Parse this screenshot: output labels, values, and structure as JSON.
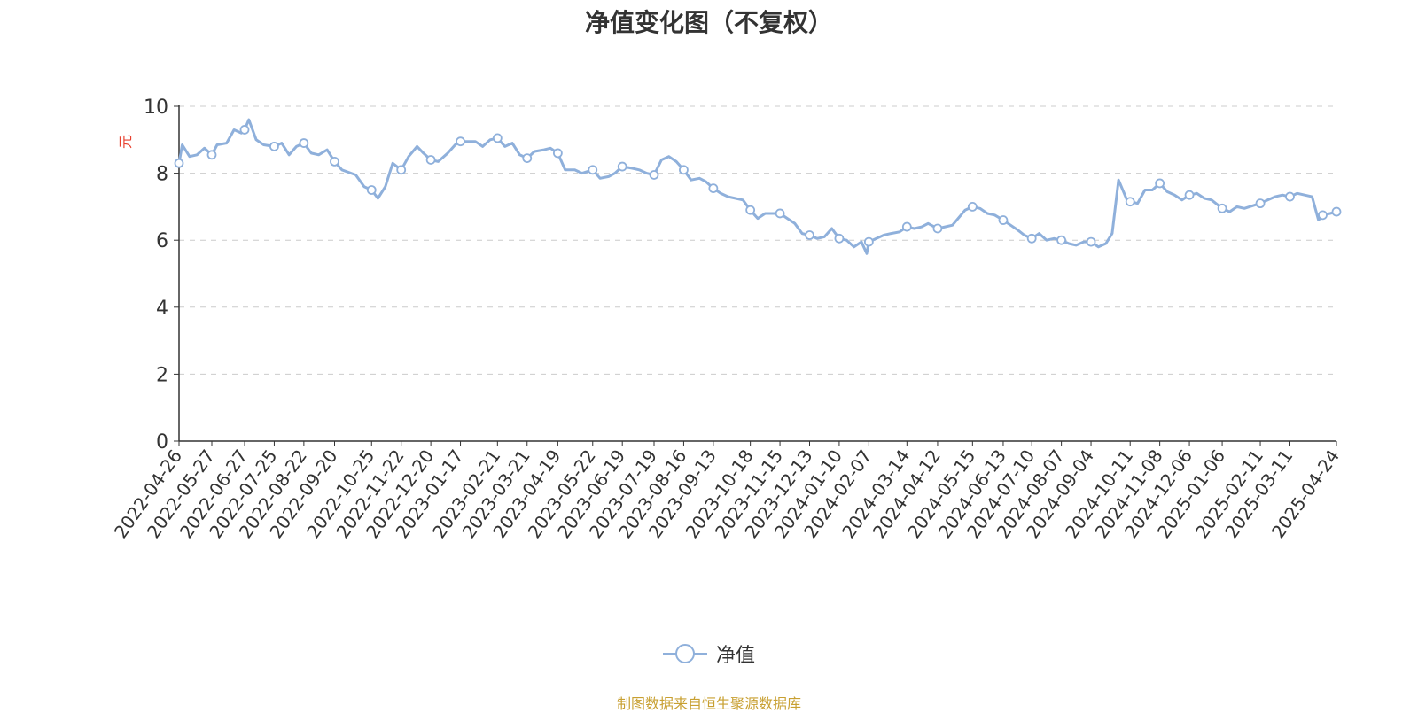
{
  "chart_data": {
    "type": "line",
    "title": "净值变化图（不复权）",
    "ylabel": "元",
    "ylim": [
      0,
      10
    ],
    "yticks": [
      0,
      2,
      4,
      6,
      8,
      10
    ],
    "grid": true,
    "legend_position": "bottom",
    "xlim": [
      "2022-04-26",
      "2025-04-24"
    ],
    "x_tick_labels": [
      "2022-04-26",
      "2022-05-27",
      "2022-06-27",
      "2022-07-25",
      "2022-08-22",
      "2022-09-20",
      "2022-10-25",
      "2022-11-22",
      "2022-12-20",
      "2023-01-17",
      "2023-02-21",
      "2023-03-21",
      "2023-04-19",
      "2023-05-22",
      "2023-06-19",
      "2023-07-19",
      "2023-08-16",
      "2023-09-13",
      "2023-10-18",
      "2023-11-15",
      "2023-12-13",
      "2024-01-10",
      "2024-02-07",
      "2024-03-14",
      "2024-04-12",
      "2024-05-15",
      "2024-06-13",
      "2024-07-10",
      "2024-08-07",
      "2024-09-04",
      "2024-10-11",
      "2024-11-08",
      "2024-12-06",
      "2025-01-06",
      "2025-02-11",
      "2025-03-11",
      "2025-04-24"
    ],
    "series": [
      {
        "name": "净值",
        "color": "#8fb0db",
        "points": [
          [
            "2022-04-26",
            8.3
          ],
          [
            "2022-04-29",
            8.85
          ],
          [
            "2022-05-06",
            8.5
          ],
          [
            "2022-05-13",
            8.55
          ],
          [
            "2022-05-20",
            8.75
          ],
          [
            "2022-05-27",
            8.55
          ],
          [
            "2022-06-01",
            8.85
          ],
          [
            "2022-06-10",
            8.9
          ],
          [
            "2022-06-17",
            9.3
          ],
          [
            "2022-06-24",
            9.2
          ],
          [
            "2022-06-27",
            9.3
          ],
          [
            "2022-07-01",
            9.6
          ],
          [
            "2022-07-08",
            9.0
          ],
          [
            "2022-07-15",
            8.85
          ],
          [
            "2022-07-25",
            8.8
          ],
          [
            "2022-08-01",
            8.9
          ],
          [
            "2022-08-08",
            8.55
          ],
          [
            "2022-08-15",
            8.8
          ],
          [
            "2022-08-22",
            8.9
          ],
          [
            "2022-08-29",
            8.6
          ],
          [
            "2022-09-05",
            8.55
          ],
          [
            "2022-09-13",
            8.7
          ],
          [
            "2022-09-20",
            8.35
          ],
          [
            "2022-09-27",
            8.1
          ],
          [
            "2022-10-10",
            7.95
          ],
          [
            "2022-10-18",
            7.6
          ],
          [
            "2022-10-25",
            7.5
          ],
          [
            "2022-10-31",
            7.25
          ],
          [
            "2022-11-07",
            7.6
          ],
          [
            "2022-11-14",
            8.3
          ],
          [
            "2022-11-22",
            8.1
          ],
          [
            "2022-11-29",
            8.5
          ],
          [
            "2022-12-07",
            8.8
          ],
          [
            "2022-12-13",
            8.6
          ],
          [
            "2022-12-20",
            8.4
          ],
          [
            "2022-12-27",
            8.35
          ],
          [
            "2023-01-05",
            8.6
          ],
          [
            "2023-01-12",
            8.85
          ],
          [
            "2023-01-17",
            8.95
          ],
          [
            "2023-01-31",
            8.95
          ],
          [
            "2023-02-07",
            8.8
          ],
          [
            "2023-02-14",
            9.0
          ],
          [
            "2023-02-21",
            9.05
          ],
          [
            "2023-02-28",
            8.8
          ],
          [
            "2023-03-07",
            8.9
          ],
          [
            "2023-03-14",
            8.55
          ],
          [
            "2023-03-21",
            8.45
          ],
          [
            "2023-03-28",
            8.65
          ],
          [
            "2023-04-06",
            8.7
          ],
          [
            "2023-04-12",
            8.75
          ],
          [
            "2023-04-19",
            8.6
          ],
          [
            "2023-04-26",
            8.1
          ],
          [
            "2023-05-05",
            8.1
          ],
          [
            "2023-05-12",
            8.0
          ],
          [
            "2023-05-22",
            8.1
          ],
          [
            "2023-05-29",
            7.85
          ],
          [
            "2023-06-06",
            7.9
          ],
          [
            "2023-06-12",
            8.0
          ],
          [
            "2023-06-19",
            8.2
          ],
          [
            "2023-06-28",
            8.15
          ],
          [
            "2023-07-05",
            8.1
          ],
          [
            "2023-07-12",
            8.0
          ],
          [
            "2023-07-19",
            7.95
          ],
          [
            "2023-07-26",
            8.4
          ],
          [
            "2023-08-02",
            8.5
          ],
          [
            "2023-08-09",
            8.35
          ],
          [
            "2023-08-16",
            8.1
          ],
          [
            "2023-08-23",
            7.8
          ],
          [
            "2023-08-31",
            7.85
          ],
          [
            "2023-09-06",
            7.75
          ],
          [
            "2023-09-13",
            7.55
          ],
          [
            "2023-09-20",
            7.4
          ],
          [
            "2023-09-27",
            7.3
          ],
          [
            "2023-10-11",
            7.2
          ],
          [
            "2023-10-18",
            6.9
          ],
          [
            "2023-10-25",
            6.65
          ],
          [
            "2023-11-01",
            6.8
          ],
          [
            "2023-11-08",
            6.8
          ],
          [
            "2023-11-15",
            6.8
          ],
          [
            "2023-11-22",
            6.65
          ],
          [
            "2023-11-29",
            6.5
          ],
          [
            "2023-12-06",
            6.2
          ],
          [
            "2023-12-13",
            6.15
          ],
          [
            "2023-12-20",
            6.05
          ],
          [
            "2023-12-27",
            6.1
          ],
          [
            "2024-01-03",
            6.35
          ],
          [
            "2024-01-10",
            6.05
          ],
          [
            "2024-01-17",
            6.0
          ],
          [
            "2024-01-24",
            5.8
          ],
          [
            "2024-01-31",
            5.95
          ],
          [
            "2024-02-05",
            5.6
          ],
          [
            "2024-02-07",
            5.95
          ],
          [
            "2024-02-21",
            6.15
          ],
          [
            "2024-02-28",
            6.2
          ],
          [
            "2024-03-07",
            6.25
          ],
          [
            "2024-03-14",
            6.4
          ],
          [
            "2024-03-21",
            6.35
          ],
          [
            "2024-03-28",
            6.4
          ],
          [
            "2024-04-03",
            6.5
          ],
          [
            "2024-04-12",
            6.35
          ],
          [
            "2024-04-19",
            6.4
          ],
          [
            "2024-04-26",
            6.45
          ],
          [
            "2024-05-08",
            6.9
          ],
          [
            "2024-05-15",
            7.0
          ],
          [
            "2024-05-22",
            6.95
          ],
          [
            "2024-05-29",
            6.8
          ],
          [
            "2024-06-05",
            6.75
          ],
          [
            "2024-06-13",
            6.6
          ],
          [
            "2024-06-20",
            6.45
          ],
          [
            "2024-06-27",
            6.3
          ],
          [
            "2024-07-03",
            6.15
          ],
          [
            "2024-07-10",
            6.05
          ],
          [
            "2024-07-17",
            6.2
          ],
          [
            "2024-07-24",
            6.0
          ],
          [
            "2024-07-31",
            6.05
          ],
          [
            "2024-08-07",
            6.0
          ],
          [
            "2024-08-14",
            5.9
          ],
          [
            "2024-08-21",
            5.85
          ],
          [
            "2024-08-28",
            5.95
          ],
          [
            "2024-09-04",
            5.95
          ],
          [
            "2024-09-11",
            5.8
          ],
          [
            "2024-09-18",
            5.9
          ],
          [
            "2024-09-24",
            6.2
          ],
          [
            "2024-09-30",
            7.8
          ],
          [
            "2024-10-08",
            7.2
          ],
          [
            "2024-10-11",
            7.15
          ],
          [
            "2024-10-18",
            7.1
          ],
          [
            "2024-10-25",
            7.5
          ],
          [
            "2024-11-01",
            7.5
          ],
          [
            "2024-11-08",
            7.7
          ],
          [
            "2024-11-15",
            7.45
          ],
          [
            "2024-11-22",
            7.35
          ],
          [
            "2024-11-29",
            7.2
          ],
          [
            "2024-12-06",
            7.35
          ],
          [
            "2024-12-13",
            7.4
          ],
          [
            "2024-12-20",
            7.25
          ],
          [
            "2024-12-27",
            7.2
          ],
          [
            "2025-01-06",
            6.95
          ],
          [
            "2025-01-13",
            6.85
          ],
          [
            "2025-01-20",
            7.0
          ],
          [
            "2025-01-27",
            6.95
          ],
          [
            "2025-02-11",
            7.1
          ],
          [
            "2025-02-18",
            7.2
          ],
          [
            "2025-02-25",
            7.3
          ],
          [
            "2025-03-04",
            7.35
          ],
          [
            "2025-03-11",
            7.3
          ],
          [
            "2025-03-18",
            7.4
          ],
          [
            "2025-03-25",
            7.35
          ],
          [
            "2025-04-01",
            7.3
          ],
          [
            "2025-04-07",
            6.6
          ],
          [
            "2025-04-11",
            6.75
          ],
          [
            "2025-04-18",
            6.8
          ],
          [
            "2025-04-24",
            6.85
          ]
        ],
        "marker_dates": [
          "2022-04-26",
          "2022-05-27",
          "2022-06-27",
          "2022-07-25",
          "2022-08-22",
          "2022-09-20",
          "2022-10-25",
          "2022-11-22",
          "2022-12-20",
          "2023-01-17",
          "2023-02-21",
          "2023-03-21",
          "2023-04-19",
          "2023-05-22",
          "2023-06-19",
          "2023-07-19",
          "2023-08-16",
          "2023-09-13",
          "2023-10-18",
          "2023-11-15",
          "2023-12-13",
          "2024-01-10",
          "2024-02-07",
          "2024-03-14",
          "2024-04-12",
          "2024-05-15",
          "2024-06-13",
          "2024-07-10",
          "2024-08-07",
          "2024-09-04",
          "2024-10-11",
          "2024-11-08",
          "2024-12-06",
          "2025-01-06",
          "2025-02-11",
          "2025-03-11",
          "2025-04-11",
          "2025-04-24"
        ]
      }
    ]
  },
  "legend": {
    "label": "净值"
  },
  "footer": {
    "source": "制图数据来自恒生聚源数据库"
  }
}
